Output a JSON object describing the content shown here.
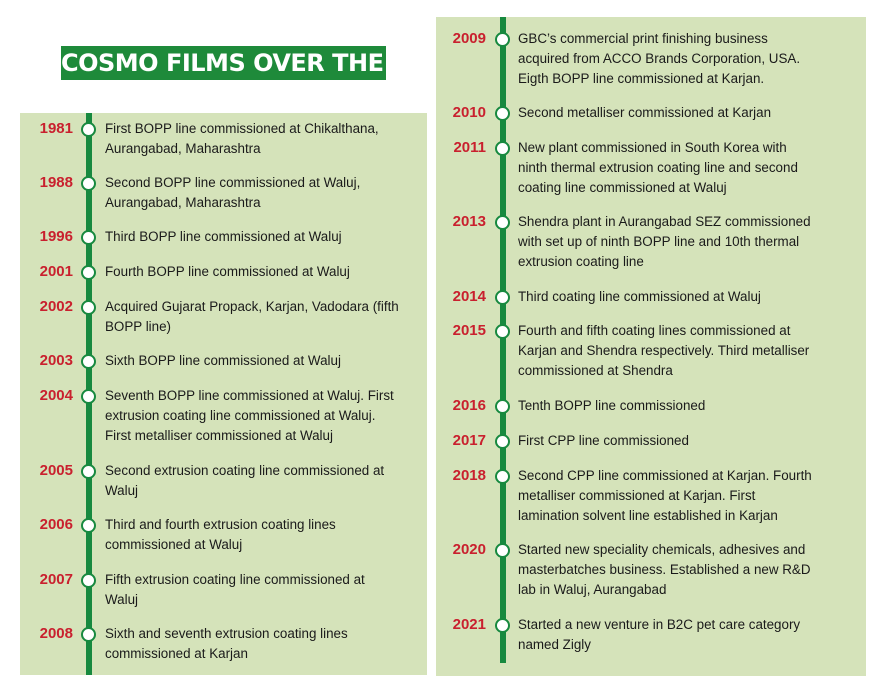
{
  "title": "COSMO FILMS OVER THE YEARS",
  "left_entries": [
    {
      "year": "1981",
      "text": [
        "First BOPP line commissioned at Chikalthana,",
        "Aurangabad, Maharashtra"
      ]
    },
    {
      "year": "1988",
      "text": [
        "Second BOPP line commissioned at Waluj,",
        "Aurangabad, Maharashtra"
      ]
    },
    {
      "year": "1996",
      "text": [
        "Third BOPP line commissioned at Waluj"
      ]
    },
    {
      "year": "2001",
      "text": [
        "Fourth BOPP line commissioned at Waluj"
      ]
    },
    {
      "year": "2002",
      "text": [
        "Acquired Gujarat Propack, Karjan, Vadodara (fifth",
        "BOPP line)"
      ]
    },
    {
      "year": "2003",
      "text": [
        "Sixth BOPP line commissioned at Waluj"
      ]
    },
    {
      "year": "2004",
      "text": [
        "Seventh BOPP line commissioned at Waluj. First",
        "extrusion coating line commissioned at Waluj.",
        "First metalliser commissioned at Waluj"
      ]
    },
    {
      "year": "2005",
      "text": [
        "Second extrusion coating line commissioned at",
        "Waluj"
      ]
    },
    {
      "year": "2006",
      "text": [
        "Third and fourth extrusion coating lines",
        "commissioned at Waluj"
      ]
    },
    {
      "year": "2007",
      "text": [
        "Fifth extrusion coating line commissioned at",
        "Waluj"
      ]
    },
    {
      "year": "2008",
      "text": [
        "Sixth and seventh extrusion coating lines",
        "commissioned at Karjan"
      ]
    }
  ],
  "right_entries": [
    {
      "year": "2009",
      "text": [
        "GBC’s commercial print finishing business",
        "acquired from ACCO Brands Corporation, USA.",
        "Eigth BOPP line commissioned at Karjan."
      ]
    },
    {
      "year": "2010",
      "text": [
        "Second metalliser commissioned at Karjan"
      ]
    },
    {
      "year": "2011",
      "text": [
        "New plant commissioned in South Korea with",
        "ninth thermal extrusion coating line and second",
        "coating line commissioned at Waluj"
      ]
    },
    {
      "year": "2013",
      "text": [
        "Shendra plant in Aurangabad SEZ commissioned",
        "with set up of ninth BOPP line and 10th thermal",
        "extrusion coating line"
      ]
    },
    {
      "year": "2014",
      "text": [
        "Third coating line commissioned at Waluj"
      ]
    },
    {
      "year": "2015",
      "text": [
        "Fourth and fifth coating lines commissioned at",
        "Karjan and Shendra respectively. Third metalliser",
        "commissioned at Shendra"
      ]
    },
    {
      "year": "2016",
      "text": [
        "Tenth BOPP line commissioned"
      ]
    },
    {
      "year": "2017",
      "text": [
        "First CPP line commissioned"
      ]
    },
    {
      "year": "2018",
      "text": [
        "Second CPP line commissioned at Karjan. Fourth",
        "metalliser commissioned at Karjan. First",
        "lamination solvent line established in Karjan"
      ]
    },
    {
      "year": "2020",
      "text": [
        "Started new speciality chemicals, adhesives and",
        "masterbatches business. Established a new R&D",
        "lab in Waluj, Aurangabad"
      ]
    },
    {
      "year": "2021",
      "text": [
        "Started a new venture in B2C pet care category",
        "named Zigly"
      ]
    }
  ],
  "colors": {
    "panel": "#d5e3ba",
    "timeline": "#17893f",
    "year": "#c9202e",
    "title_bg": "#1e8a3a"
  }
}
